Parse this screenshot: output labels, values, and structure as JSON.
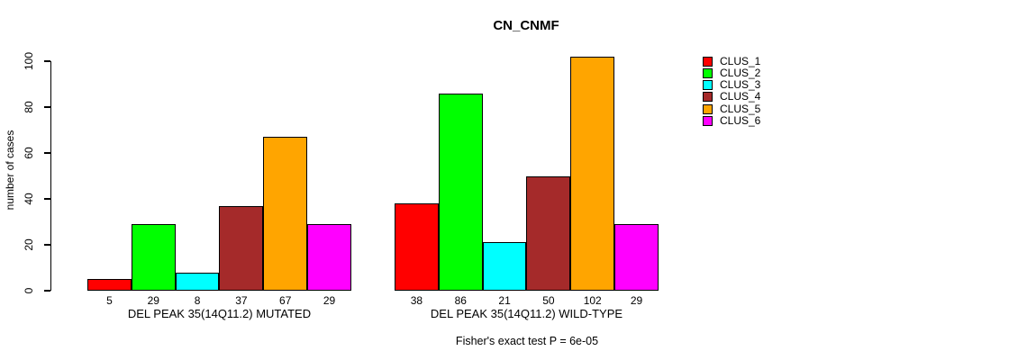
{
  "chart_data": {
    "type": "bar",
    "title": "CN_CNMF",
    "xlabel": "",
    "ylabel": "number of cases",
    "ylim": [
      0,
      100
    ],
    "y_ticks": [
      0,
      20,
      40,
      60,
      80,
      100
    ],
    "grid": false,
    "legend_position": "right",
    "categories": [
      "DEL PEAK 35(14Q11.2) MUTATED",
      "DEL PEAK 35(14Q11.2) WILD-TYPE"
    ],
    "series": [
      {
        "name": "CLUS_1",
        "color": "#FF0000",
        "values": [
          5,
          38
        ]
      },
      {
        "name": "CLUS_2",
        "color": "#00FF00",
        "values": [
          29,
          86
        ]
      },
      {
        "name": "CLUS_3",
        "color": "#00FFFF",
        "values": [
          8,
          21
        ]
      },
      {
        "name": "CLUS_4",
        "color": "#A52A2A",
        "values": [
          37,
          50
        ]
      },
      {
        "name": "CLUS_5",
        "color": "#FFA500",
        "values": [
          67,
          102
        ]
      },
      {
        "name": "CLUS_6",
        "color": "#FF00FF",
        "values": [
          29,
          29
        ]
      }
    ],
    "bar_value_labels_shown": true,
    "annotation": "Fisher's exact test P = 6e-05"
  },
  "footer": {
    "note": "Fisher's exact test P = 6e-05"
  },
  "colors": {
    "axis": "#000000",
    "background": "#FFFFFF"
  }
}
